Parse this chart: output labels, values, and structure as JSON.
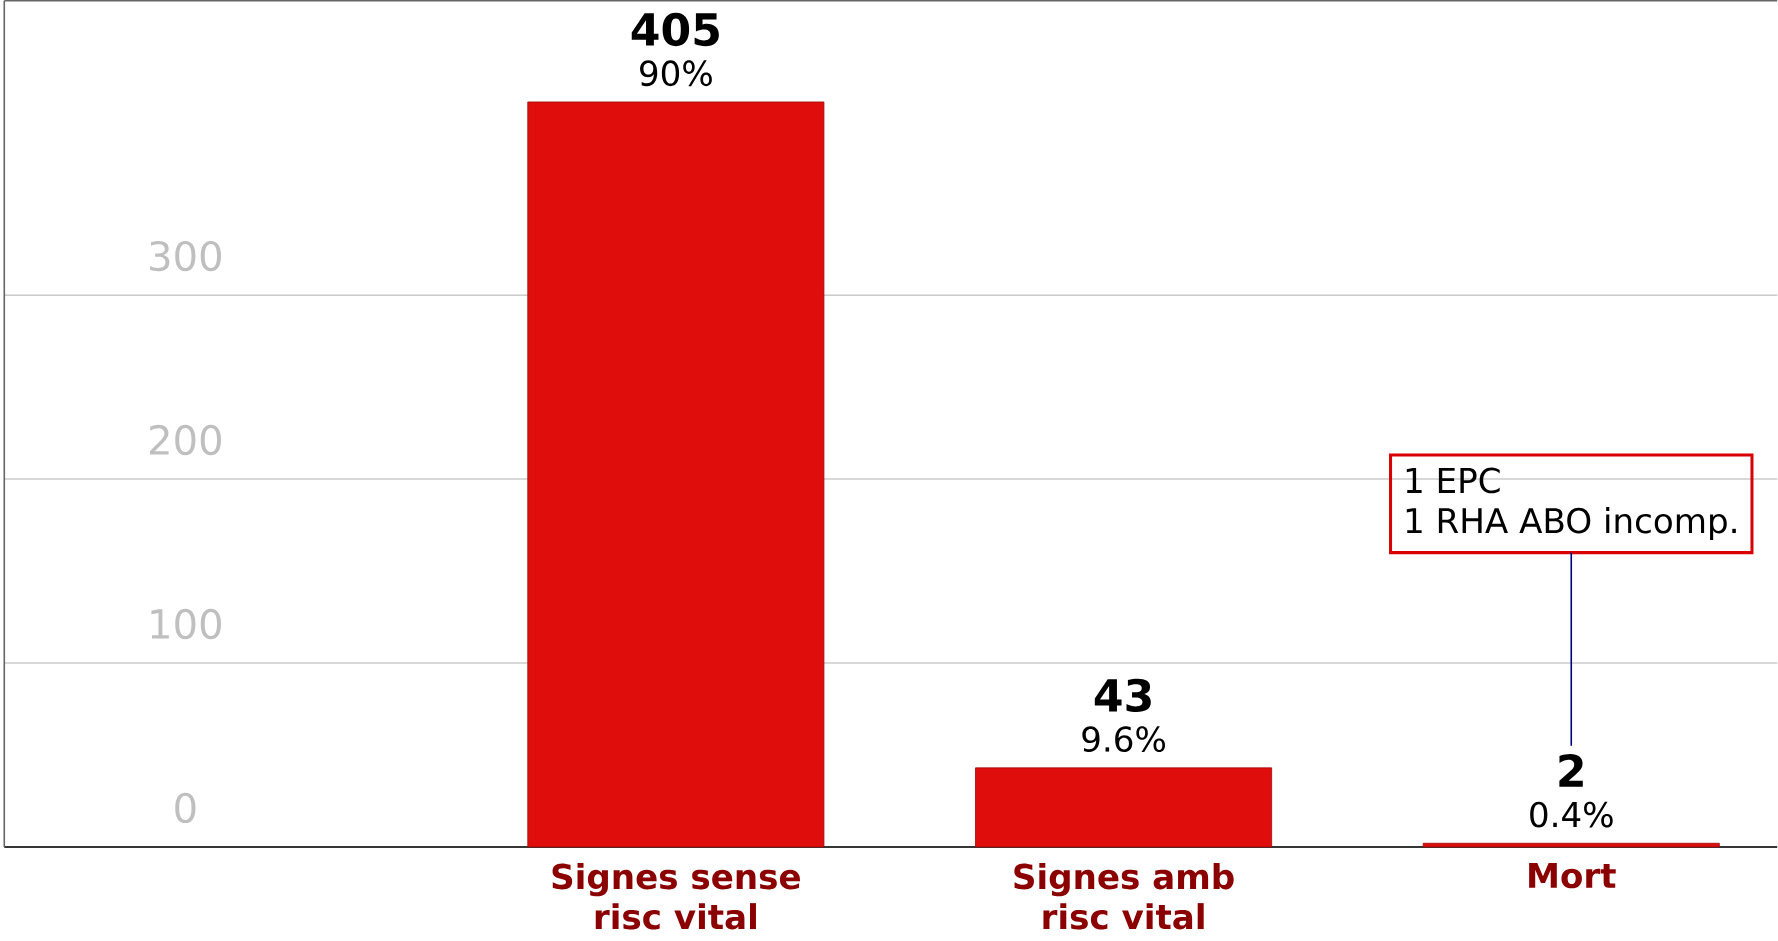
{
  "chart_data": {
    "type": "bar",
    "categories": [
      "Signes sense risc vital",
      "Signes amb risc vital",
      "Mort"
    ],
    "values": [
      405,
      43,
      2
    ],
    "data_labels": true,
    "color": "#e00d0d",
    "ylim": [
      0,
      460
    ],
    "yticks": [
      0,
      100,
      200,
      300
    ],
    "grid": "y",
    "annotations": [
      {
        "text": "90%",
        "x": "Signes sense risc vital",
        "y": 405
      },
      {
        "text": "9.6%",
        "x": "Signes amb risc vital",
        "y": 43
      },
      {
        "text": "0.4%",
        "x": "Mort",
        "y": 2
      },
      "1 EPC",
      "1 RHA ABO incomp."
    ]
  }
}
